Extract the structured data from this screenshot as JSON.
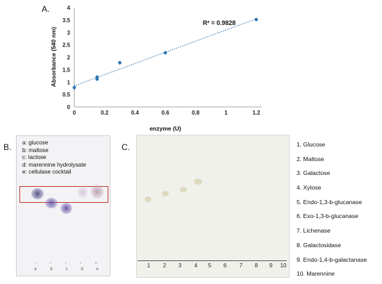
{
  "panels": {
    "a": "A.",
    "b": "B.",
    "c": "C."
  },
  "chart_data": {
    "type": "scatter",
    "x": [
      0,
      0.15,
      0.15,
      0.3,
      0.6,
      1.2
    ],
    "y": [
      0.78,
      1.2,
      1.12,
      1.78,
      2.18,
      3.52
    ],
    "errors": [
      0.1,
      0.08,
      0.06,
      0.08,
      0.05,
      0.06
    ],
    "trendline": {
      "x": [
        0,
        1.2
      ],
      "y": [
        0.85,
        3.55
      ],
      "style": "dotted"
    },
    "annotation": "R² = 0.9828",
    "xlabel": "enzyme (U)",
    "ylabel": "Absorbance (540 nm)",
    "xlim": [
      0,
      1.2
    ],
    "ylim": [
      0,
      4
    ],
    "xticks": [
      "0",
      "0.2",
      "0.4",
      "0.6",
      "0.8",
      "1",
      "1.2"
    ],
    "yticks": [
      "0",
      "0.5",
      "1",
      "1.5",
      "2",
      "2.5",
      "3",
      "3.5",
      "4"
    ],
    "grid": false,
    "color": "#2e75b6"
  },
  "panel_b": {
    "legend": [
      "a: glucose",
      "b: maltose",
      "c: lactose",
      "d: marennine hydrolysate",
      "e: cellulase cocktail"
    ],
    "lanes": [
      "a",
      "b",
      "c",
      "d",
      "e"
    ]
  },
  "panel_c": {
    "lanes": [
      "1",
      "2",
      "3",
      "4",
      "5",
      "6",
      "7",
      "8",
      "9",
      "10"
    ],
    "legend": [
      "1. Glucose",
      "2. Maltose",
      "3. Galactose",
      "4. Xylose",
      "5. Endo-1,3-b-glucanase",
      "6. Exo-1,3-b-glucanase",
      "7. Lichenase",
      "8. Galactosidase",
      "9. Endo-1,4-b-galactanase",
      "10. Marennine"
    ]
  }
}
